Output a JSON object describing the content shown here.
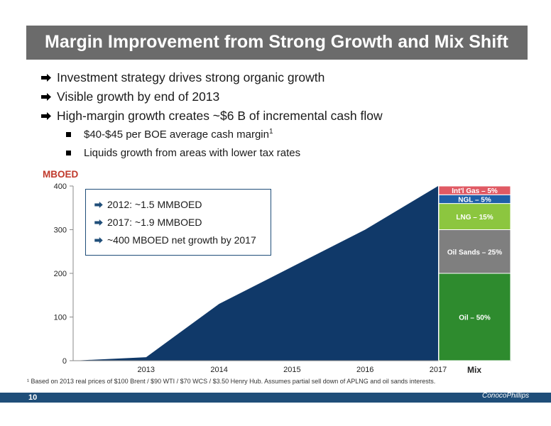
{
  "title": "Margin Improvement from Strong Growth and Mix Shift",
  "bullets": [
    "Investment strategy drives strong organic growth",
    "Visible growth by end of 2013",
    "High-margin growth creates ~$6 B of incremental cash flow"
  ],
  "sub_bullets": [
    {
      "text": "$40-$45 per BOE average cash margin",
      "sup": "1"
    },
    {
      "text": "Liquids growth from areas with lower tax rates",
      "sup": ""
    }
  ],
  "legend_items": [
    "2012: ~1.5 MMBOED",
    "2017: ~1.9 MMBOED",
    "~400 MBOED net growth by 2017"
  ],
  "footnote": "¹ Based on 2013 real prices of $100 Brent / $90 WTI / $70 WCS / $3.50 Henry Hub. Assumes partial sell down of APLNG and oil sands interests.",
  "page_number": "10",
  "logo_text": "ConocoPhillips",
  "colors": {
    "area": "#103969",
    "accent_arrow": "#1f4e79",
    "title_bar": "#6b6b6b"
  },
  "chart_data": {
    "type": "area",
    "ylabel": "MBOED",
    "ylim": [
      0,
      400
    ],
    "yticks": [
      0,
      100,
      200,
      300,
      400
    ],
    "x_tick_labels": [
      "2013",
      "2014",
      "2015",
      "2016",
      "2017"
    ],
    "x": [
      2012,
      2013,
      2014,
      2015,
      2016,
      2017
    ],
    "values": [
      0,
      8,
      130,
      215,
      300,
      400
    ],
    "mix_label": "Mix",
    "mix": [
      {
        "label": "Oil – 50%",
        "value": 50,
        "color": "#2e8b2e"
      },
      {
        "label": "Oil Sands – 25%",
        "value": 25,
        "color": "#7f7f7f"
      },
      {
        "label": "LNG – 15%",
        "value": 15,
        "color": "#8cc63f"
      },
      {
        "label": "NGL – 5%",
        "value": 5,
        "color": "#1f5fa8"
      },
      {
        "label": "Int'l Gas – 5%",
        "value": 5,
        "color": "#e05a64"
      }
    ]
  }
}
